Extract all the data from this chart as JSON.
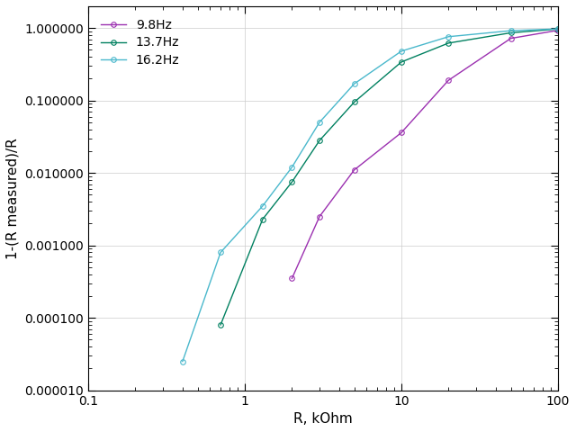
{
  "title": "",
  "xlabel": "R, kOhm",
  "ylabel": "1-(R measured)/R",
  "xlim": [
    0.1,
    100
  ],
  "ylim": [
    1e-05,
    2.0
  ],
  "series": [
    {
      "label": "9.8Hz",
      "color": "#9b30b0",
      "x": [
        2.0,
        3.0,
        5.0,
        10.0,
        20.0,
        50.0,
        100.0
      ],
      "y": [
        0.00035,
        0.0025,
        0.011,
        0.036,
        0.19,
        0.72,
        0.93
      ]
    },
    {
      "label": "13.7Hz",
      "color": "#008060",
      "x": [
        0.7,
        1.3,
        2.0,
        3.0,
        5.0,
        10.0,
        20.0,
        50.0,
        100.0
      ],
      "y": [
        8e-05,
        0.0023,
        0.0075,
        0.028,
        0.095,
        0.34,
        0.62,
        0.86,
        0.97
      ]
    },
    {
      "label": "16.2Hz",
      "color": "#4ab8cc",
      "x": [
        0.4,
        0.7,
        1.3,
        2.0,
        3.0,
        5.0,
        10.0,
        20.0,
        50.0,
        100.0
      ],
      "y": [
        2.5e-05,
        0.0008,
        0.0035,
        0.012,
        0.05,
        0.17,
        0.48,
        0.76,
        0.92,
        0.975
      ]
    }
  ],
  "yticks": [
    1e-05,
    0.0001,
    0.001,
    0.01,
    0.1,
    1.0
  ],
  "ytick_labels": [
    "0.000010",
    "0.000100",
    "0.001000",
    "0.010000",
    "0.100000",
    "1.000000"
  ],
  "xticks": [
    0.1,
    1,
    10,
    100
  ],
  "xtick_labels": [
    "0.1",
    "1",
    "10",
    "100"
  ],
  "background_color": "#ffffff",
  "grid_color": "#cccccc",
  "tick_label_fontsize": 10,
  "axis_label_fontsize": 11,
  "legend_fontsize": 10,
  "marker": "o",
  "marker_size": 4,
  "linewidth": 1.0
}
